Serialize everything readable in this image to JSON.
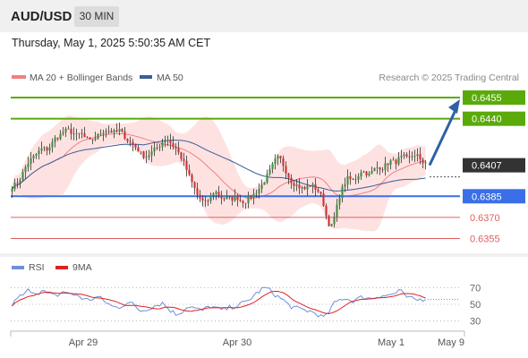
{
  "header": {
    "pair": "AUD/USD",
    "timeframe": "30 MIN",
    "timestamp": "Thursday, May 1, 2025 5:50:35 AM CET"
  },
  "colors": {
    "green_level": "#5aaa0a",
    "blue_level": "#3a6fe8",
    "red_level": "#e06060",
    "current_price_box": "#333333",
    "arrow": "#2e60a8",
    "candle_up": "#3f8f3f",
    "candle_down": "#d03030",
    "bollinger_fill": "#fdd8d8",
    "ma20": "#f08080",
    "ma50": "#3a5d99",
    "rsi": "#6f8fd8",
    "rsi_ma": "#dd2222"
  },
  "chart_data": [
    {
      "type": "candlestick",
      "legend": [
        {
          "name": "MA 20 + Bollinger Bands",
          "color": "#f08080"
        },
        {
          "name": "MA 50",
          "color": "#3a5d99"
        }
      ],
      "credit": "Research © 2025 Trading Central",
      "ylim": [
        0.6349,
        0.6462
      ],
      "x_labels": [
        "Apr 29",
        "Apr 30",
        "May 1",
        "May 9"
      ],
      "levels": [
        {
          "value": 0.6455,
          "label": "0.6455",
          "kind": "resistance",
          "style": "box"
        },
        {
          "value": 0.644,
          "label": "0.6440",
          "kind": "resistance",
          "style": "box"
        },
        {
          "value": 0.6385,
          "label": "0.6385",
          "kind": "pivot",
          "style": "box"
        },
        {
          "value": 0.637,
          "label": "0.6370",
          "kind": "support",
          "style": "text"
        },
        {
          "value": 0.6355,
          "label": "0.6355",
          "kind": "support",
          "style": "text"
        }
      ],
      "current_price": {
        "value": 0.6407,
        "label": "0.6407"
      },
      "forecast_arrow": {
        "from": 0.6407,
        "to": 0.6455
      },
      "price_anchors": [
        0.6392,
        0.6394,
        0.6398,
        0.6405,
        0.641,
        0.6413,
        0.6416,
        0.6419,
        0.6418,
        0.6421,
        0.6426,
        0.6428,
        0.6431,
        0.6432,
        0.643,
        0.6428,
        0.643,
        0.6426,
        0.6424,
        0.6426,
        0.6428,
        0.6431,
        0.6432,
        0.6431,
        0.643,
        0.6432,
        0.6428,
        0.6424,
        0.6422,
        0.6419,
        0.6415,
        0.6413,
        0.6415,
        0.6418,
        0.642,
        0.6424,
        0.6426,
        0.6422,
        0.6419,
        0.6414,
        0.6408,
        0.64,
        0.6393,
        0.6386,
        0.6382,
        0.638,
        0.6384,
        0.6389,
        0.6386,
        0.6383,
        0.6384,
        0.6383,
        0.6385,
        0.6382,
        0.6381,
        0.6384,
        0.6386,
        0.6389,
        0.6393,
        0.6398,
        0.6404,
        0.641,
        0.6413,
        0.6407,
        0.64,
        0.6395,
        0.6393,
        0.6391,
        0.639,
        0.6393,
        0.6392,
        0.6389,
        0.6384,
        0.637,
        0.6362,
        0.6372,
        0.6385,
        0.6393,
        0.6398,
        0.6396,
        0.6398,
        0.6403,
        0.6402,
        0.64,
        0.6404,
        0.6406,
        0.6405,
        0.6408,
        0.641,
        0.6409,
        0.6412,
        0.6413,
        0.6411,
        0.6414,
        0.6415,
        0.6408,
        0.641
      ]
    },
    {
      "type": "line",
      "legend": [
        {
          "name": "RSI",
          "color": "#6f8fd8"
        },
        {
          "name": "9MA",
          "color": "#dd2222"
        }
      ],
      "ylim": [
        20,
        80
      ],
      "y_ticks": [
        "70",
        "50",
        "30"
      ],
      "rsi_anchors": [
        50,
        55,
        60,
        62,
        68,
        65,
        64,
        66,
        63,
        61,
        60,
        62,
        66,
        64,
        60,
        62,
        58,
        55,
        56,
        57,
        59,
        55,
        52,
        48,
        46,
        47,
        50,
        53,
        50,
        45,
        42,
        44,
        46,
        48,
        50,
        52,
        46,
        42,
        38,
        40,
        44,
        48,
        46,
        44,
        42,
        45,
        48,
        46,
        44,
        43,
        45,
        47,
        48,
        50,
        52,
        55,
        60,
        64,
        68,
        70,
        66,
        62,
        58,
        55,
        50,
        47,
        45,
        44,
        43,
        42,
        40,
        38,
        34,
        36,
        45,
        52,
        55,
        58,
        56,
        54,
        56,
        58,
        59,
        57,
        58,
        60,
        61,
        60,
        62,
        63,
        68,
        60,
        58,
        56,
        55,
        56,
        57
      ]
    }
  ]
}
